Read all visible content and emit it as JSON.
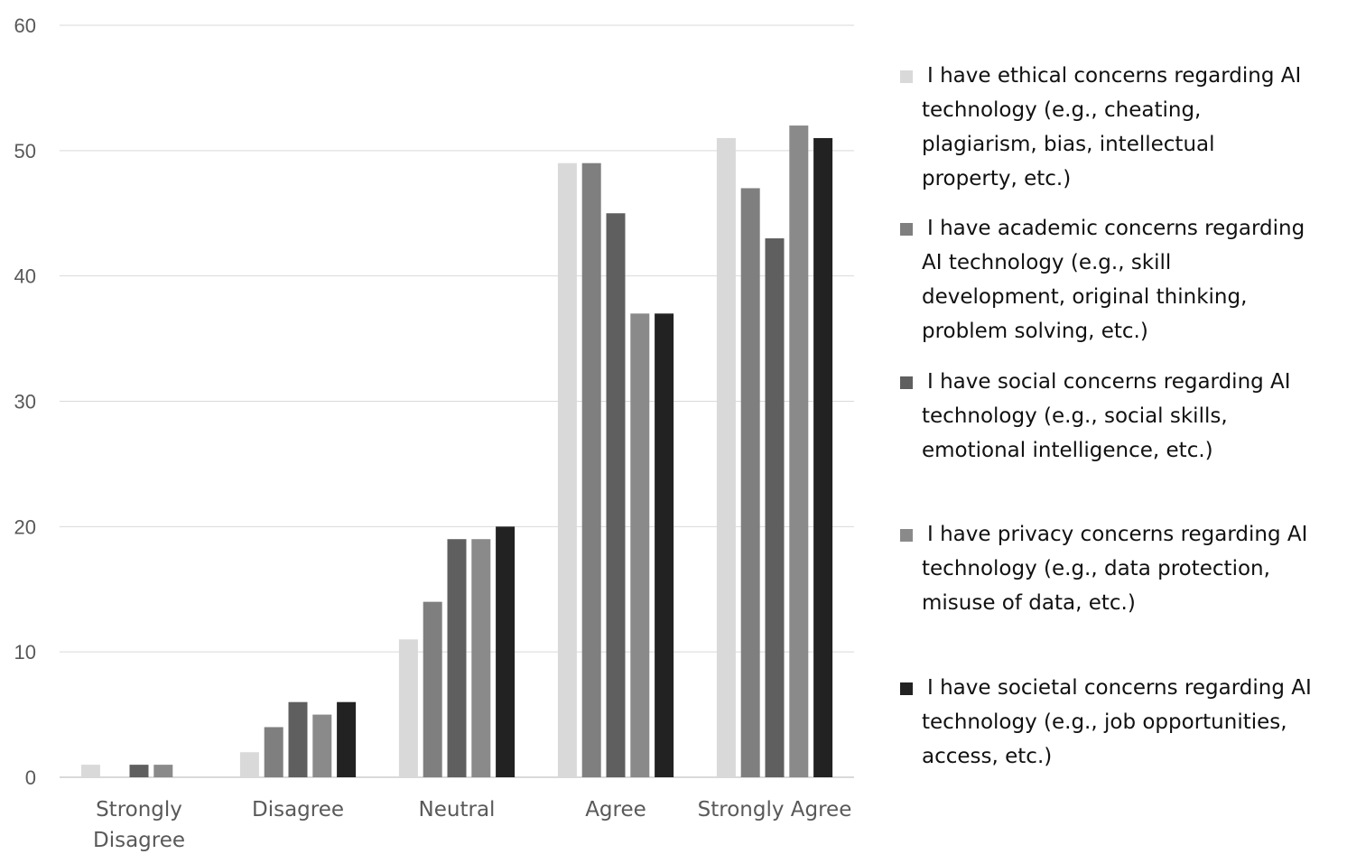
{
  "chart_data": {
    "type": "bar",
    "categories": [
      "Strongly Disagree",
      "Disagree",
      "Neutral",
      "Agree",
      "Strongly Agree"
    ],
    "category_lines": [
      [
        "Strongly",
        "Disagree"
      ],
      [
        "Disagree"
      ],
      [
        "Neutral"
      ],
      [
        "Agree"
      ],
      [
        "Strongly Agree"
      ]
    ],
    "series": [
      {
        "name": "I have ethical concerns regarding AI technology (e.g., cheating, plagiarism, bias, intellectual property, etc.)",
        "lines": [
          "I have ethical concerns regarding AI",
          "technology (e.g., cheating,",
          "plagiarism, bias, intellectual",
          "property, etc.)"
        ],
        "color": "#d9d9d9",
        "values": [
          1,
          2,
          11,
          49,
          51
        ]
      },
      {
        "name": "I have academic concerns regarding AI technology (e.g., skill development, original thinking, problem solving, etc.)",
        "lines": [
          "I have academic concerns regarding",
          "AI technology (e.g., skill",
          "development, original thinking,",
          "problem solving, etc.)"
        ],
        "color": "#7f7f7f",
        "values": [
          0,
          4,
          14,
          49,
          47
        ]
      },
      {
        "name": "I have social concerns regarding AI technology (e.g., social skills, emotional intelligence, etc.)",
        "lines": [
          "I have social concerns regarding AI",
          "technology (e.g., social skills,",
          "emotional intelligence, etc.)"
        ],
        "color": "#5f5f5f",
        "values": [
          1,
          6,
          19,
          45,
          43
        ]
      },
      {
        "name": "I have privacy concerns regarding AI technology (e.g., data protection, misuse of data, etc.)",
        "lines": [
          "I have privacy concerns regarding AI",
          "technology (e.g., data protection,",
          "misuse of data, etc.)"
        ],
        "color": "#8a8a8a",
        "values": [
          1,
          5,
          19,
          37,
          52
        ]
      },
      {
        "name": "I have societal concerns regarding AI technology (e.g., job opportunities, access, etc.)",
        "lines": [
          "I have societal concerns regarding AI",
          "technology (e.g., job opportunities,",
          "access, etc.)"
        ],
        "color": "#222222",
        "values": [
          0,
          6,
          20,
          37,
          51
        ]
      }
    ],
    "yticks": [
      0,
      10,
      20,
      30,
      40,
      50,
      60
    ],
    "ylim": [
      0,
      60
    ],
    "grid": true,
    "legend": "right",
    "title": "",
    "xlabel": "",
    "ylabel": ""
  }
}
